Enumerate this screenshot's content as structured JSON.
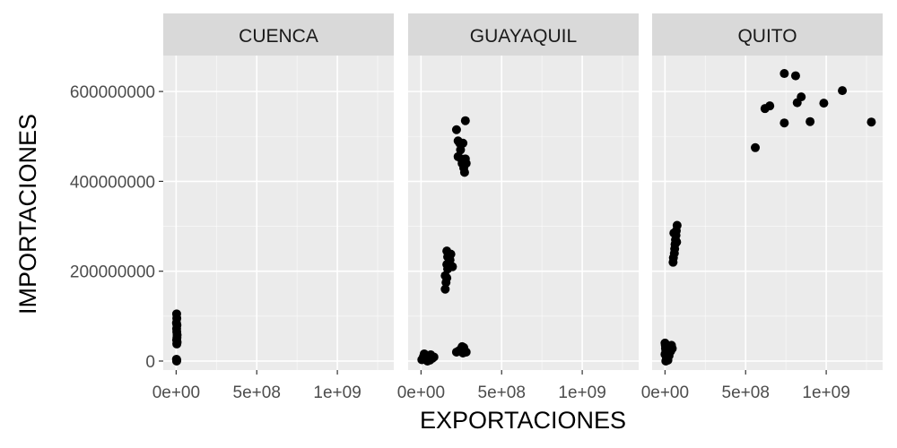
{
  "chart_data": {
    "type": "scatter",
    "xlabel": "EXPORTACIONES",
    "ylabel": "IMPORTACIONES",
    "xlim": [
      -80000000,
      1350000000
    ],
    "ylim": [
      -20000000,
      680000000
    ],
    "x_ticks": [
      0,
      500000000,
      1000000000
    ],
    "x_tick_labels": [
      "0e+00",
      "5e+08",
      "1e+09"
    ],
    "y_ticks": [
      0,
      200000000,
      400000000,
      600000000
    ],
    "y_tick_labels": [
      "0",
      "200000000",
      "400000000",
      "600000000"
    ],
    "grid": true,
    "colors": {
      "panel": "#ebebeb",
      "strip": "#d9d9d9",
      "grid": "#ffffff",
      "point": "#000000"
    },
    "panels": [
      {
        "name": "CUENCA",
        "points": [
          [
            3000000,
            105000000
          ],
          [
            4000000,
            95000000
          ],
          [
            2000000,
            85000000
          ],
          [
            5000000,
            80000000
          ],
          [
            3000000,
            72000000
          ],
          [
            4000000,
            65000000
          ],
          [
            6000000,
            58000000
          ],
          [
            5000000,
            52000000
          ],
          [
            3000000,
            47000000
          ],
          [
            6000000,
            42000000
          ],
          [
            4000000,
            38000000
          ],
          [
            2000000,
            4000000
          ],
          [
            3000000,
            0
          ],
          [
            4000000,
            2000000
          ]
        ]
      },
      {
        "name": "GUAYAQUIL",
        "points": [
          [
            5000000,
            3000000
          ],
          [
            15000000,
            10000000
          ],
          [
            25000000,
            5000000
          ],
          [
            35000000,
            12000000
          ],
          [
            45000000,
            8000000
          ],
          [
            60000000,
            14000000
          ],
          [
            70000000,
            6000000
          ],
          [
            80000000,
            9000000
          ],
          [
            20000000,
            16000000
          ],
          [
            40000000,
            0
          ],
          [
            55000000,
            2000000
          ],
          [
            150000000,
            160000000
          ],
          [
            155000000,
            175000000
          ],
          [
            160000000,
            185000000
          ],
          [
            150000000,
            190000000
          ],
          [
            165000000,
            205000000
          ],
          [
            160000000,
            215000000
          ],
          [
            175000000,
            212000000
          ],
          [
            180000000,
            225000000
          ],
          [
            195000000,
            210000000
          ],
          [
            165000000,
            232000000
          ],
          [
            160000000,
            245000000
          ],
          [
            185000000,
            238000000
          ],
          [
            220000000,
            515000000
          ],
          [
            230000000,
            490000000
          ],
          [
            245000000,
            470000000
          ],
          [
            230000000,
            455000000
          ],
          [
            250000000,
            450000000
          ],
          [
            255000000,
            440000000
          ],
          [
            260000000,
            485000000
          ],
          [
            265000000,
            430000000
          ],
          [
            270000000,
            420000000
          ],
          [
            275000000,
            450000000
          ],
          [
            280000000,
            440000000
          ],
          [
            275000000,
            535000000
          ],
          [
            240000000,
            485000000
          ],
          [
            220000000,
            20000000
          ],
          [
            235000000,
            23000000
          ],
          [
            250000000,
            28000000
          ],
          [
            260000000,
            18000000
          ],
          [
            270000000,
            24000000
          ],
          [
            280000000,
            20000000
          ],
          [
            255000000,
            32000000
          ],
          [
            265000000,
            30000000
          ]
        ]
      },
      {
        "name": "QUITO",
        "points": [
          [
            0,
            40000000
          ],
          [
            2000000,
            35000000
          ],
          [
            3000000,
            28000000
          ],
          [
            5000000,
            22000000
          ],
          [
            0,
            15000000
          ],
          [
            8000000,
            10000000
          ],
          [
            10000000,
            5000000
          ],
          [
            15000000,
            25000000
          ],
          [
            20000000,
            18000000
          ],
          [
            25000000,
            12000000
          ],
          [
            30000000,
            30000000
          ],
          [
            35000000,
            22000000
          ],
          [
            40000000,
            35000000
          ],
          [
            45000000,
            28000000
          ],
          [
            5000000,
            0
          ],
          [
            18000000,
            2000000
          ],
          [
            50000000,
            220000000
          ],
          [
            52000000,
            230000000
          ],
          [
            58000000,
            240000000
          ],
          [
            60000000,
            250000000
          ],
          [
            62000000,
            260000000
          ],
          [
            65000000,
            270000000
          ],
          [
            68000000,
            280000000
          ],
          [
            70000000,
            290000000
          ],
          [
            75000000,
            302000000
          ],
          [
            55000000,
            285000000
          ],
          [
            72000000,
            265000000
          ],
          [
            560000000,
            475000000
          ],
          [
            620000000,
            562000000
          ],
          [
            650000000,
            568000000
          ],
          [
            740000000,
            530000000
          ],
          [
            740000000,
            640000000
          ],
          [
            810000000,
            635000000
          ],
          [
            820000000,
            575000000
          ],
          [
            845000000,
            588000000
          ],
          [
            900000000,
            533000000
          ],
          [
            985000000,
            574000000
          ],
          [
            1100000000,
            602000000
          ],
          [
            1280000000,
            532000000
          ]
        ]
      }
    ]
  }
}
